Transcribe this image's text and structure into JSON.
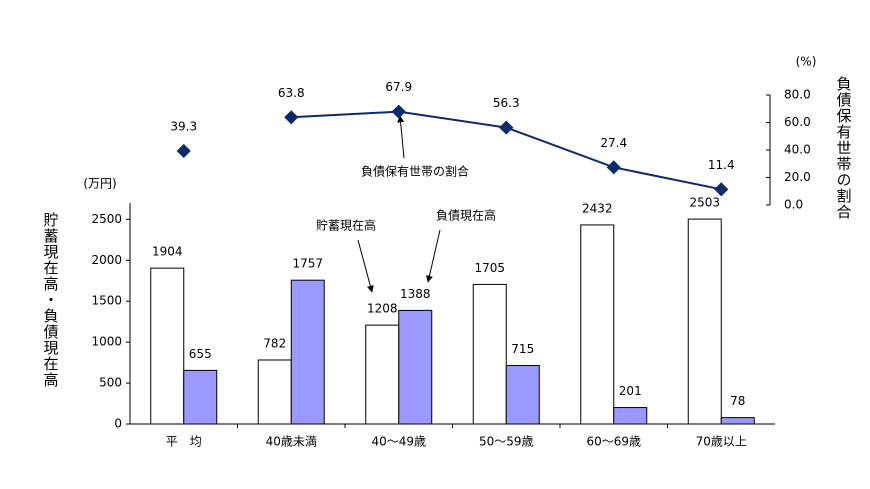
{
  "chart_data": [
    {
      "type": "line",
      "series": [
        {
          "color": "#0d2a6b",
          "axis": "y2",
          "values": [
            39.3,
            null,
            null,
            null,
            null,
            null
          ]
        },
        {
          "color": "#0d2a6b",
          "axis": "y2",
          "values": [
            null,
            63.8,
            67.9,
            56.3,
            27.4,
            11.4
          ]
        }
      ],
      "y2lim": [
        0,
        80
      ],
      "y2ticks": [
        {
          "value": 0,
          "label": "0.0"
        },
        {
          "value": 20,
          "label": "20.0"
        },
        {
          "value": 40,
          "label": "40.0"
        },
        {
          "value": 60,
          "label": "60.0"
        },
        {
          "value": 80,
          "label": "80.0"
        }
      ],
      "y2_unit": "(%)",
      "y2label": "負債保有世帯の割合",
      "annotation": "負債保有世帯の割合"
    },
    {
      "type": "bar",
      "categories": [
        "平　均",
        "40歳未満",
        "40～49歳",
        "50～59歳",
        "60～69歳",
        "70歳以上"
      ],
      "series": [
        {
          "name": "貯蓄現在高",
          "color": "#ffffff",
          "values": [
            1904,
            782,
            1208,
            1705,
            2432,
            2503
          ]
        },
        {
          "name": "負債現在高",
          "color": "#9999ff",
          "values": [
            655,
            1757,
            1388,
            715,
            201,
            78
          ]
        }
      ],
      "ylim": [
        0,
        2700
      ],
      "yticks": [
        0,
        500,
        1000,
        1500,
        2000,
        2500
      ],
      "y_unit": "(万円)",
      "ylabel": "貯蓄現在高・負債現在高"
    }
  ]
}
